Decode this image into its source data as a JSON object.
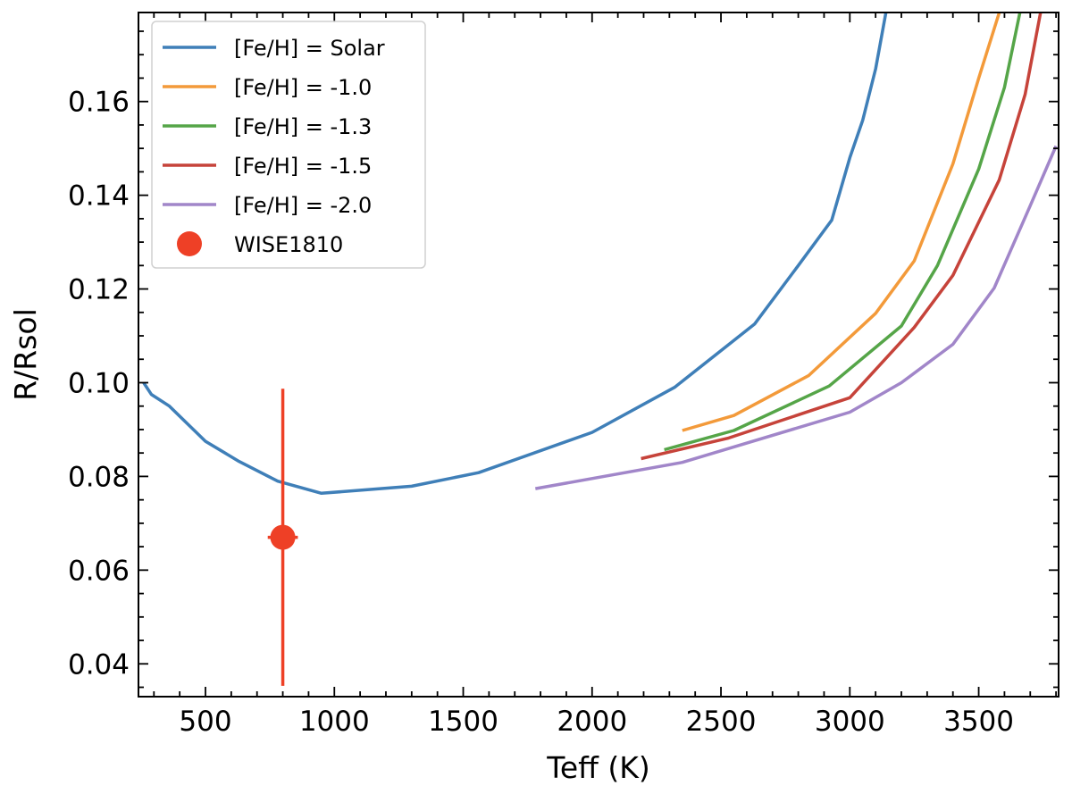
{
  "chart_data": {
    "type": "line",
    "title": "",
    "xlabel": "Teff (K)",
    "ylabel": "R/Rsol",
    "xlim": [
      240,
      3810
    ],
    "ylim": [
      0.033,
      0.179
    ],
    "x_ticks": [
      {
        "value": 500,
        "label": "500"
      },
      {
        "value": 1000,
        "label": "1000"
      },
      {
        "value": 1500,
        "label": "1500"
      },
      {
        "value": 2000,
        "label": "2000"
      },
      {
        "value": 2500,
        "label": "2500"
      },
      {
        "value": 3000,
        "label": "3000"
      },
      {
        "value": 3500,
        "label": "3500"
      }
    ],
    "y_ticks": [
      {
        "value": 0.04,
        "label": "0.04"
      },
      {
        "value": 0.06,
        "label": "0.06"
      },
      {
        "value": 0.08,
        "label": "0.08"
      },
      {
        "value": 0.1,
        "label": "0.10"
      },
      {
        "value": 0.12,
        "label": "0.12"
      },
      {
        "value": 0.14,
        "label": "0.14"
      },
      {
        "value": 0.16,
        "label": "0.16"
      }
    ],
    "x_minor_step": 100,
    "y_minor_step": 0.005,
    "grid": false,
    "legend_position": "top-left",
    "series": [
      {
        "name": "[Fe/H] = Solar",
        "color": "#3f7fb8",
        "points": [
          [
            260,
            0.1
          ],
          [
            290,
            0.0975
          ],
          [
            360,
            0.095
          ],
          [
            500,
            0.0875
          ],
          [
            630,
            0.0832
          ],
          [
            780,
            0.079
          ],
          [
            950,
            0.0764
          ],
          [
            1300,
            0.0779
          ],
          [
            1560,
            0.0808
          ],
          [
            2000,
            0.0894
          ],
          [
            2320,
            0.099
          ],
          [
            2630,
            0.1125
          ],
          [
            2800,
            0.125
          ],
          [
            2930,
            0.1347
          ],
          [
            3000,
            0.148
          ],
          [
            3050,
            0.156
          ],
          [
            3100,
            0.167
          ],
          [
            3140,
            0.179
          ]
        ]
      },
      {
        "name": "[Fe/H] = -1.0",
        "color": "#f39a3a",
        "points": [
          [
            2350,
            0.0898
          ],
          [
            2550,
            0.093
          ],
          [
            2840,
            0.1015
          ],
          [
            3100,
            0.1148
          ],
          [
            3250,
            0.126
          ],
          [
            3400,
            0.1467
          ],
          [
            3500,
            0.165
          ],
          [
            3580,
            0.179
          ]
        ]
      },
      {
        "name": "[Fe/H] = -1.3",
        "color": "#55a548",
        "points": [
          [
            2280,
            0.0857
          ],
          [
            2550,
            0.0898
          ],
          [
            2920,
            0.0993
          ],
          [
            3200,
            0.1121
          ],
          [
            3340,
            0.125
          ],
          [
            3500,
            0.1456
          ],
          [
            3600,
            0.163
          ],
          [
            3660,
            0.179
          ]
        ]
      },
      {
        "name": "[Fe/H] = -1.5",
        "color": "#c6433a",
        "points": [
          [
            2190,
            0.0838
          ],
          [
            2530,
            0.0882
          ],
          [
            3000,
            0.0968
          ],
          [
            3250,
            0.1118
          ],
          [
            3400,
            0.1229
          ],
          [
            3580,
            0.1433
          ],
          [
            3680,
            0.1615
          ],
          [
            3740,
            0.179
          ]
        ]
      },
      {
        "name": "[Fe/H] = -2.0",
        "color": "#a186c9",
        "points": [
          [
            1780,
            0.0774
          ],
          [
            2350,
            0.083
          ],
          [
            3000,
            0.0937
          ],
          [
            3200,
            0.1
          ],
          [
            3400,
            0.1082
          ],
          [
            3560,
            0.1202
          ],
          [
            3700,
            0.1378
          ],
          [
            3800,
            0.1505
          ]
        ]
      }
    ],
    "points": [
      {
        "name": "WISE1810",
        "color": "#ee4026",
        "x": 800,
        "y": 0.067,
        "x_err": 100,
        "y_err": 0.0317
      }
    ]
  }
}
